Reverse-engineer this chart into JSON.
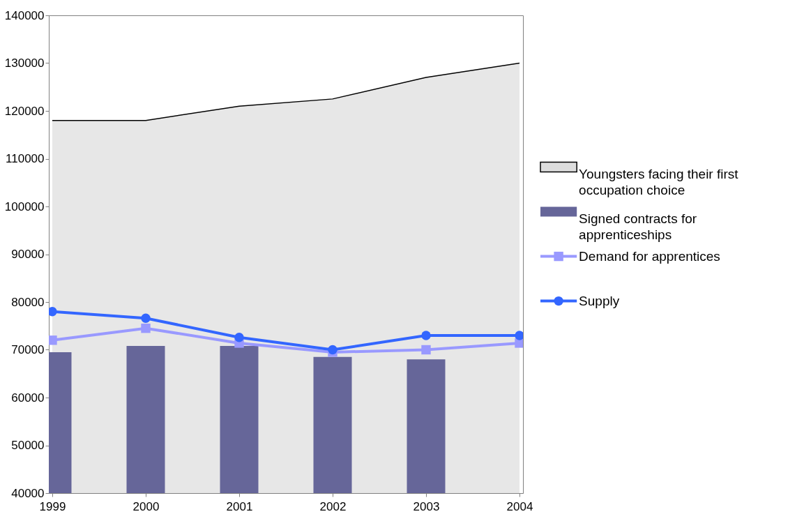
{
  "chart_data": {
    "type": "line",
    "x": [
      1999,
      2000,
      2001,
      2002,
      2003,
      2004
    ],
    "series": [
      {
        "name": "Youngsters facing their first occupation choice",
        "type": "area",
        "color": "#dddddd",
        "values": [
          118000,
          118000,
          121000,
          122500,
          127000,
          130000
        ]
      },
      {
        "name": "Signed contracts for apprenticeships",
        "type": "bar",
        "color": "#666699",
        "values": [
          69500,
          70800,
          70800,
          68500,
          68000,
          null
        ]
      },
      {
        "name": "Demand for apprentices",
        "marker": "square",
        "color": "#9999ff",
        "values": [
          72000,
          74500,
          71400,
          69500,
          70000,
          71400
        ]
      },
      {
        "name": "Supply",
        "marker": "circle",
        "color": "#3366ff",
        "values": [
          78000,
          76600,
          72600,
          70000,
          73000,
          73000
        ]
      }
    ],
    "xlim": [
      1999,
      2004
    ],
    "xticks": [
      1999,
      2000,
      2001,
      2002,
      2003,
      2004
    ],
    "ylim": [
      40000,
      140000
    ],
    "yticks": [
      40000,
      50000,
      60000,
      70000,
      80000,
      90000,
      100000,
      110000,
      120000,
      130000,
      140000
    ],
    "grid": false,
    "legend": "right"
  }
}
